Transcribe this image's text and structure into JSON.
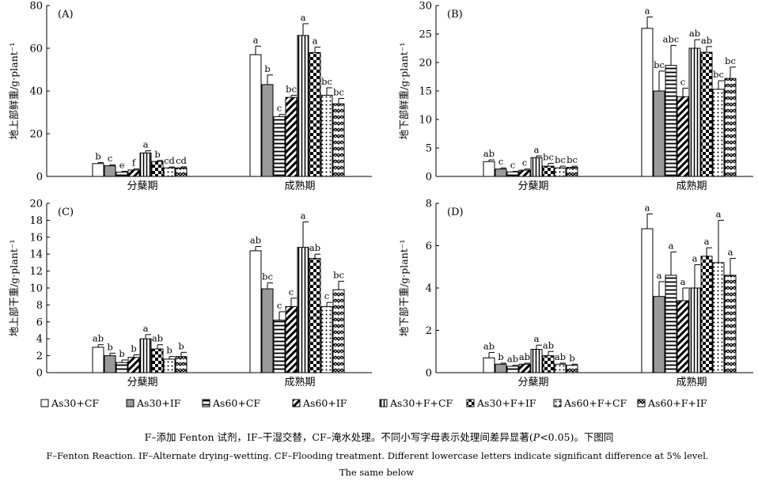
{
  "legend": [
    {
      "name": "As30+CF",
      "pattern": "white"
    },
    {
      "name": "As30+IF",
      "pattern": "gray"
    },
    {
      "name": "As60+CF",
      "pattern": "hlines"
    },
    {
      "name": "As60+IF",
      "pattern": "diag"
    },
    {
      "name": "As30+F+CF",
      "pattern": "vlines"
    },
    {
      "name": "As30+F+IF",
      "pattern": "checker"
    },
    {
      "name": "As60+F+CF",
      "pattern": "dotgrid"
    },
    {
      "name": "As60+F+IF",
      "pattern": "zigzag"
    }
  ],
  "caption": {
    "zh_prefix": "F–添加 Fenton 试剂，IF–干湿交替，CF–淹水处理。不同小写字母表示处理间差异显著(",
    "zh_p": "P",
    "zh_suffix": "<0.05)。下图同",
    "en_line1": "F–Fenton Reaction. IF–Alternate drying–wetting. CF–Flooding treatment. Different lowercase letters indicate significant difference at 5% level.",
    "en_line2": "The same below"
  },
  "chart_data": [
    {
      "type": "bar",
      "panel": "(A)",
      "ylabel": "地上部鲜重/g·plant⁻¹",
      "categories": [
        "分蘖期",
        "成熟期"
      ],
      "ylim": [
        0,
        80
      ],
      "yticks": [
        0,
        20,
        40,
        60,
        80
      ],
      "series": [
        {
          "name": "As30+CF",
          "values": [
            6,
            57
          ],
          "errors": [
            0.5,
            4
          ],
          "letters": [
            "b",
            "a"
          ]
        },
        {
          "name": "As30+IF",
          "values": [
            5,
            43
          ],
          "errors": [
            0.5,
            4.5
          ],
          "letters": [
            "c",
            "b"
          ]
        },
        {
          "name": "As60+CF",
          "values": [
            2,
            28
          ],
          "errors": [
            0.4,
            1
          ],
          "letters": [
            "e",
            "c"
          ]
        },
        {
          "name": "As60+IF",
          "values": [
            3,
            37
          ],
          "errors": [
            0.5,
            1
          ],
          "letters": [
            "f",
            "bc"
          ]
        },
        {
          "name": "As30+F+CF",
          "values": [
            11,
            66
          ],
          "errors": [
            1,
            5.5
          ],
          "letters": [
            "a",
            "a"
          ]
        },
        {
          "name": "As30+F+IF",
          "values": [
            7,
            58
          ],
          "errors": [
            0.5,
            2.5
          ],
          "letters": [
            "b",
            "a"
          ]
        },
        {
          "name": "As60+F+CF",
          "values": [
            4,
            38
          ],
          "errors": [
            0.4,
            3.5
          ],
          "letters": [
            "cd",
            "bc"
          ]
        },
        {
          "name": "As60+F+IF",
          "values": [
            4,
            34
          ],
          "errors": [
            0.5,
            2.5
          ],
          "letters": [
            "cd",
            "bc"
          ]
        }
      ]
    },
    {
      "type": "bar",
      "panel": "(B)",
      "ylabel": "地下部鲜重/g·plant⁻¹",
      "categories": [
        "分蘖期",
        "成熟期"
      ],
      "ylim": [
        0,
        30
      ],
      "yticks": [
        0,
        5,
        10,
        15,
        20,
        25,
        30
      ],
      "series": [
        {
          "name": "As30+CF",
          "values": [
            2.6,
            26
          ],
          "errors": [
            0.3,
            2
          ],
          "letters": [
            "ab",
            "a"
          ]
        },
        {
          "name": "As30+IF",
          "values": [
            1.3,
            15
          ],
          "errors": [
            0.2,
            3.5
          ],
          "letters": [
            "c",
            "bc"
          ]
        },
        {
          "name": "As60+CF",
          "values": [
            0.8,
            19.5
          ],
          "errors": [
            0.1,
            3.5
          ],
          "letters": [
            "c",
            "abc"
          ]
        },
        {
          "name": "As60+IF",
          "values": [
            1.1,
            14
          ],
          "errors": [
            0.2,
            1.5
          ],
          "letters": [
            "c",
            "c"
          ]
        },
        {
          "name": "As30+F+CF",
          "values": [
            3.3,
            22.5
          ],
          "errors": [
            0.3,
            1.5
          ],
          "letters": [
            "a",
            "ab"
          ]
        },
        {
          "name": "As30+F+IF",
          "values": [
            1.8,
            21.8
          ],
          "errors": [
            0.5,
            1
          ],
          "letters": [
            "bc",
            "ab"
          ]
        },
        {
          "name": "As60+F+CF",
          "values": [
            1.5,
            15.3
          ],
          "errors": [
            0.3,
            1.5
          ],
          "letters": [
            "bc",
            "bc"
          ]
        },
        {
          "name": "As60+F+IF",
          "values": [
            1.6,
            17.2
          ],
          "errors": [
            0.2,
            2
          ],
          "letters": [
            "bc",
            "bc"
          ]
        }
      ]
    },
    {
      "type": "bar",
      "panel": "(C)",
      "ylabel": "地上部干重/g·plant⁻¹",
      "categories": [
        "分蘖期",
        "成熟期"
      ],
      "ylim": [
        0,
        20
      ],
      "yticks": [
        0,
        2,
        4,
        6,
        8,
        10,
        12,
        14,
        16,
        18,
        20
      ],
      "series": [
        {
          "name": "As30+CF",
          "values": [
            3,
            14.4
          ],
          "errors": [
            0.3,
            0.5
          ],
          "letters": [
            "ab",
            "ab"
          ]
        },
        {
          "name": "As30+IF",
          "values": [
            2,
            9.9
          ],
          "errors": [
            0.3,
            0.7
          ],
          "letters": [
            "b",
            "bc"
          ]
        },
        {
          "name": "As60+CF",
          "values": [
            1.2,
            6.2
          ],
          "errors": [
            0.3,
            1
          ],
          "letters": [
            "b",
            "c"
          ]
        },
        {
          "name": "As60+IF",
          "values": [
            1.8,
            7.8
          ],
          "errors": [
            0.3,
            1
          ],
          "letters": [
            "b",
            "c"
          ]
        },
        {
          "name": "As30+F+CF",
          "values": [
            4,
            14.8
          ],
          "errors": [
            0.5,
            3
          ],
          "letters": [
            "a",
            "a"
          ]
        },
        {
          "name": "As30+F+IF",
          "values": [
            2.8,
            13.5
          ],
          "errors": [
            0.5,
            0.5
          ],
          "letters": [
            "ab",
            "ab"
          ]
        },
        {
          "name": "As60+F+CF",
          "values": [
            1.6,
            7.8
          ],
          "errors": [
            0.3,
            0.5
          ],
          "letters": [
            "b",
            "c"
          ]
        },
        {
          "name": "As60+F+IF",
          "values": [
            1.9,
            9.8
          ],
          "errors": [
            0.5,
            1
          ],
          "letters": [
            "b",
            "bc"
          ]
        }
      ]
    },
    {
      "type": "bar",
      "panel": "(D)",
      "ylabel": "地下部干重/g·plant⁻¹",
      "categories": [
        "分蘖期",
        "成熟期"
      ],
      "ylim": [
        0,
        8
      ],
      "yticks": [
        0,
        2,
        4,
        6,
        8
      ],
      "series": [
        {
          "name": "As30+CF",
          "values": [
            0.7,
            6.8
          ],
          "errors": [
            0.25,
            0.7
          ],
          "letters": [
            "ab",
            "a"
          ]
        },
        {
          "name": "As30+IF",
          "values": [
            0.4,
            3.6
          ],
          "errors": [
            0.05,
            0.7
          ],
          "letters": [
            "b",
            "a"
          ]
        },
        {
          "name": "As60+CF",
          "values": [
            0.3,
            4.6
          ],
          "errors": [
            0.05,
            1.1
          ],
          "letters": [
            "ab",
            "a"
          ]
        },
        {
          "name": "As60+IF",
          "values": [
            0.4,
            3.4
          ],
          "errors": [
            0.05,
            0.6
          ],
          "letters": [
            "ab",
            "a"
          ]
        },
        {
          "name": "As30+F+CF",
          "values": [
            1.1,
            4
          ],
          "errors": [
            0.2,
            1.1
          ],
          "letters": [
            "a",
            "a"
          ]
        },
        {
          "name": "As30+F+IF",
          "values": [
            0.8,
            5.5
          ],
          "errors": [
            0.2,
            0.4
          ],
          "letters": [
            "ab",
            "a"
          ]
        },
        {
          "name": "As60+F+CF",
          "values": [
            0.4,
            5.2
          ],
          "errors": [
            0.05,
            2
          ],
          "letters": [
            "ab",
            "a"
          ]
        },
        {
          "name": "As60+F+IF",
          "values": [
            0.35,
            4.6
          ],
          "errors": [
            0.05,
            0.8
          ],
          "letters": [
            "b",
            "a"
          ]
        }
      ]
    }
  ]
}
